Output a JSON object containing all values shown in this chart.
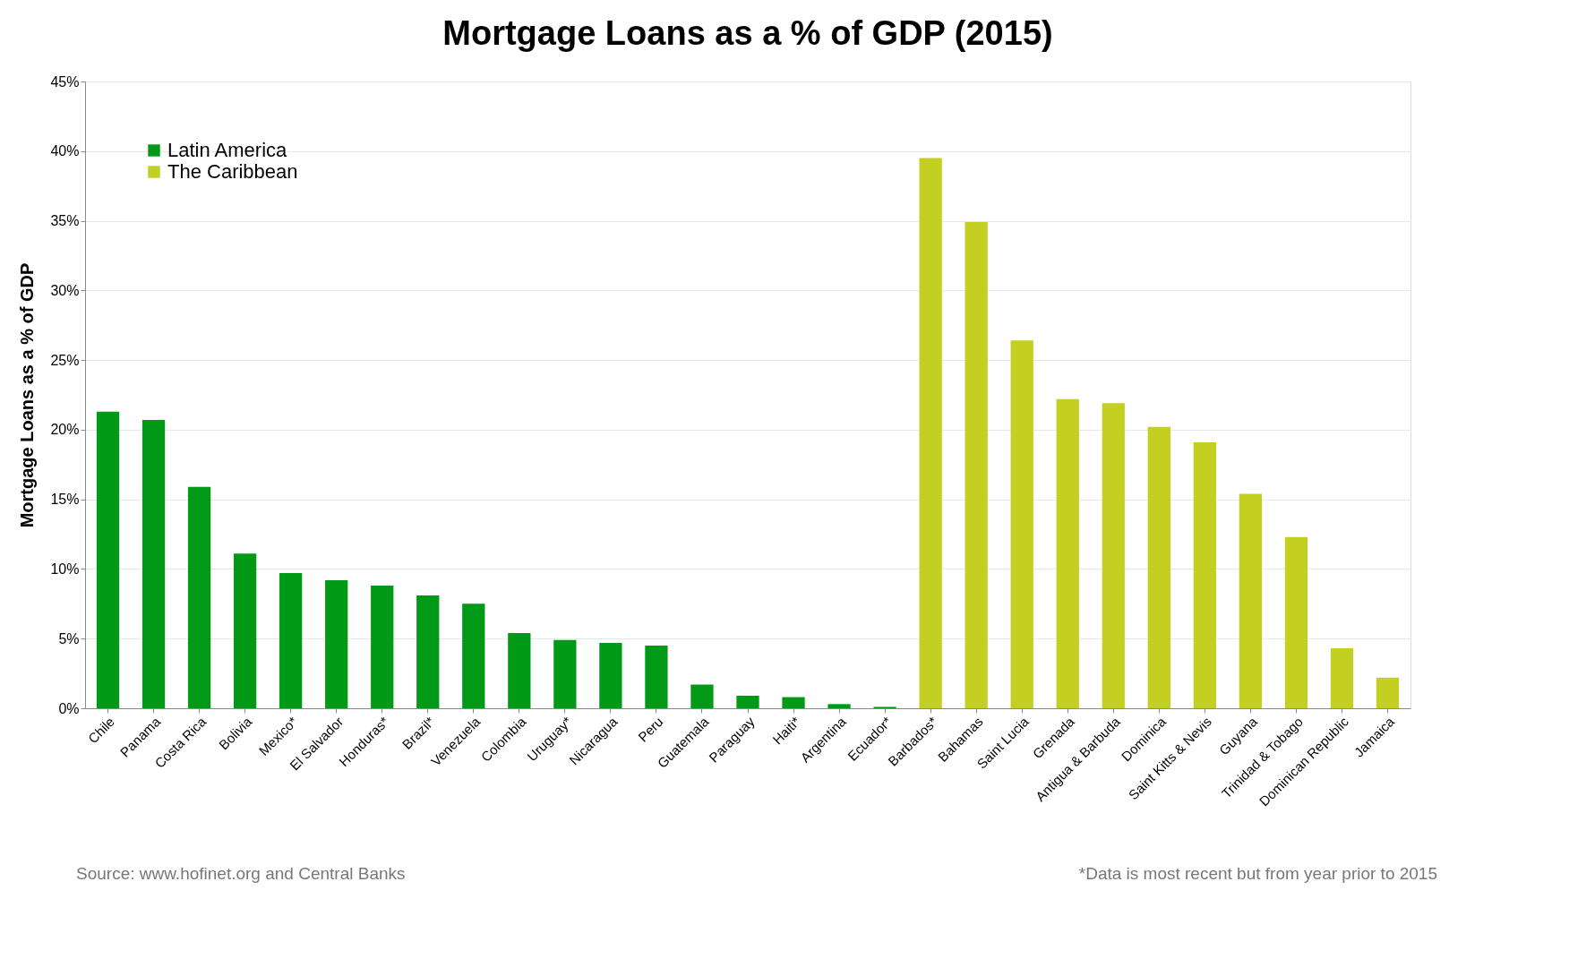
{
  "chart_data": {
    "type": "bar",
    "title": "Mortgage Loans as a % of GDP (2015)",
    "ylabel": "Mortgage Loans as a % of GDP",
    "categories": [
      "Chile",
      "Panama",
      "Costa Rica",
      "Bolivia",
      "Mexico*",
      "El Salvador",
      "Honduras*",
      "Brazil*",
      "Venezuela",
      "Colombia",
      "Uruguay*",
      "Nicaragua",
      "Peru",
      "Guatemala",
      "Paraguay",
      "Haiti*",
      "Argentina",
      "Ecuador*",
      "Barbados*",
      "Bahamas",
      "Saint Lucia",
      "Grenada",
      "Antigua & Barbuda",
      "Dominica",
      "Saint Kitts & Nevis",
      "Guyana",
      "Trinidad & Tobago",
      "Dominican Republic",
      "Jamaica"
    ],
    "series": [
      {
        "name": "Latin America",
        "color": "#009a17",
        "values": [
          21.3,
          20.7,
          15.9,
          11.1,
          9.7,
          9.2,
          8.8,
          8.1,
          7.5,
          5.4,
          4.9,
          4.7,
          4.5,
          1.7,
          0.9,
          0.8,
          0.3,
          0.1,
          null,
          null,
          null,
          null,
          null,
          null,
          null,
          null,
          null,
          null,
          null
        ]
      },
      {
        "name": "The Caribbean",
        "color": "#c3cf21",
        "values": [
          null,
          null,
          null,
          null,
          null,
          null,
          null,
          null,
          null,
          null,
          null,
          null,
          null,
          null,
          null,
          null,
          null,
          null,
          39.5,
          34.9,
          26.4,
          22.2,
          21.9,
          20.2,
          19.1,
          15.4,
          12.3,
          4.3,
          2.2
        ]
      }
    ],
    "ylim": [
      0,
      45
    ],
    "yticks": [
      {
        "value": 0,
        "label": "0%"
      },
      {
        "value": 5,
        "label": "5%"
      },
      {
        "value": 10,
        "label": "10%"
      },
      {
        "value": 15,
        "label": "15%"
      },
      {
        "value": 20,
        "label": "20%"
      },
      {
        "value": 25,
        "label": "25%"
      },
      {
        "value": 30,
        "label": "30%"
      },
      {
        "value": 35,
        "label": "35%"
      },
      {
        "value": 40,
        "label": "40%"
      },
      {
        "value": 45,
        "label": "45%"
      }
    ],
    "grid": "y",
    "legend": "top left",
    "annotations": [
      "Source: www.hofinet.org and Central Banks",
      "*Data is most recent but from year prior to 2015"
    ]
  }
}
